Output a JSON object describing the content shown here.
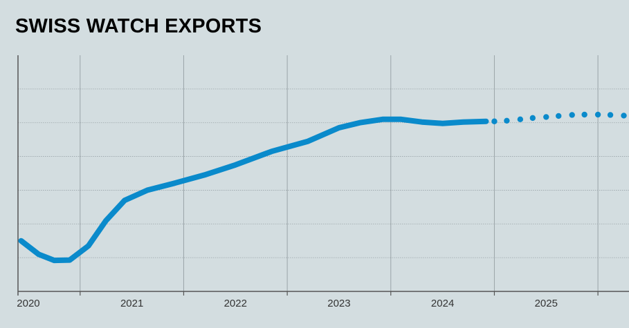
{
  "chart_data": {
    "type": "line",
    "title": "SWISS WATCH EXPORTS",
    "xlabel": "",
    "ylabel": "",
    "x_tick_labels": [
      "2020",
      "2021",
      "2022",
      "2023",
      "2024",
      "2025"
    ],
    "xlim": [
      2019.9,
      2025.8
    ],
    "ylim": [
      0,
      7
    ],
    "grid": true,
    "colors": {
      "line": "#0a8acb",
      "grid": "#9aa4a8",
      "axis": "#555555"
    },
    "series": [
      {
        "style": "solid",
        "points": [
          [
            2019.93,
            1.5
          ],
          [
            2020.1,
            1.1
          ],
          [
            2020.25,
            0.92
          ],
          [
            2020.4,
            0.93
          ],
          [
            2020.58,
            1.35
          ],
          [
            2020.75,
            2.1
          ],
          [
            2020.93,
            2.7
          ],
          [
            2021.15,
            3.0
          ],
          [
            2021.4,
            3.2
          ],
          [
            2021.7,
            3.45
          ],
          [
            2022.0,
            3.75
          ],
          [
            2022.35,
            4.15
          ],
          [
            2022.7,
            4.45
          ],
          [
            2023.0,
            4.85
          ],
          [
            2023.2,
            5.0
          ],
          [
            2023.42,
            5.1
          ],
          [
            2023.6,
            5.1
          ],
          [
            2023.8,
            5.02
          ],
          [
            2024.0,
            4.98
          ],
          [
            2024.2,
            5.02
          ],
          [
            2024.42,
            5.04
          ]
        ]
      },
      {
        "style": "dotted",
        "points": [
          [
            2024.5,
            5.04
          ],
          [
            2024.62,
            5.06
          ],
          [
            2024.75,
            5.1
          ],
          [
            2024.87,
            5.14
          ],
          [
            2025.0,
            5.17
          ],
          [
            2025.12,
            5.2
          ],
          [
            2025.25,
            5.23
          ],
          [
            2025.37,
            5.24
          ],
          [
            2025.5,
            5.24
          ],
          [
            2025.62,
            5.23
          ],
          [
            2025.75,
            5.21
          ]
        ]
      }
    ]
  }
}
